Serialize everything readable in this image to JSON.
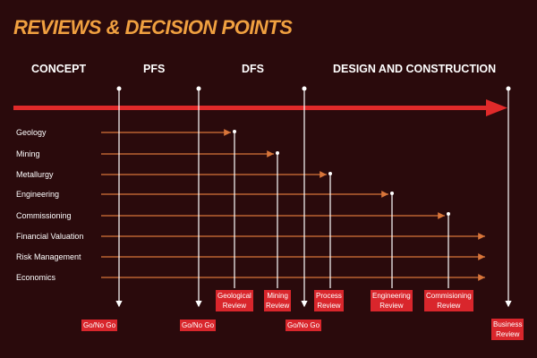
{
  "title": "REVIEWS & DECISION POINTS",
  "phases": [
    "CONCEPT",
    "PFS",
    "DFS",
    "DESIGN AND CONSTRUCTION"
  ],
  "workstreams": [
    "Geology",
    "Mining",
    "Metallurgy",
    "Engineering",
    "Commissioning",
    "Financial Valuation",
    "Risk Management",
    "Economics"
  ],
  "gates": [
    "Go/No Go",
    "Go/No Go",
    "Go/No Go"
  ],
  "reviews": [
    [
      "Geological",
      "Review"
    ],
    [
      "Mining",
      "Review"
    ],
    [
      "Process",
      "Review"
    ],
    [
      "Engineering",
      "Review"
    ],
    [
      "Commisioning",
      "Review"
    ],
    [
      "Business",
      "Review"
    ]
  ],
  "colors": {
    "background": "#2a0a0c",
    "title": "#f0a040",
    "timeline": "#e02a2a",
    "arrows": "#d8753a",
    "box": "#d9262c",
    "lines": "#ffffff"
  }
}
